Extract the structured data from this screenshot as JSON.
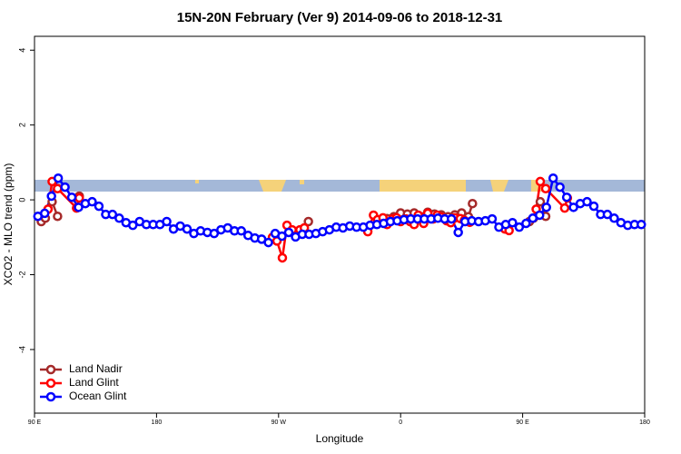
{
  "chart_data": {
    "type": "line",
    "title": "15N-20N February (Ver 9)   2014-09-06 to 2018-12-31",
    "x_label": "Longitude",
    "y_label": "XCO2 - MLO trend (ppm)",
    "xlim": [
      90,
      540
    ],
    "xticks": [
      {
        "value": 90,
        "label": "90 E"
      },
      {
        "value": 180,
        "label": "180"
      },
      {
        "value": 270,
        "label": "90 W"
      },
      {
        "value": 360,
        "label": "0"
      },
      {
        "value": 450,
        "label": "90 E"
      },
      {
        "value": 540,
        "label": "180"
      }
    ],
    "ylim": [
      -5.7,
      4.37
    ],
    "yticks": [
      -4,
      -2,
      0,
      2,
      4
    ],
    "grid": false,
    "legend": "bottom-left",
    "series": [
      {
        "name": "Land Nadir",
        "color": "#a52a2a",
        "x": [
          95,
          98,
          103,
          107,
          null,
          123,
          null,
          292,
          null,
          350,
          355,
          360,
          365,
          370,
          375,
          380,
          385,
          390,
          395,
          400,
          405,
          410,
          413,
          null,
          455,
          458,
          463,
          467
        ],
        "values": [
          -0.58,
          -0.49,
          -0.05,
          -0.44,
          null,
          0.1,
          null,
          -0.58,
          null,
          -0.5,
          -0.45,
          -0.35,
          -0.38,
          -0.35,
          -0.45,
          -0.33,
          -0.38,
          -0.4,
          -0.45,
          -0.4,
          -0.35,
          -0.45,
          -0.1,
          null,
          -0.58,
          -0.49,
          -0.05,
          -0.44
        ]
      },
      {
        "name": "Land Glint",
        "color": "#ff0000",
        "x": [
          100,
          103,
          107,
          121,
          123,
          null,
          265.5,
          268.8,
          272.8,
          276.2,
          280,
          285.7,
          289,
          null,
          335.8,
          340,
          343,
          347,
          350,
          354,
          357,
          360,
          364,
          367,
          370,
          373,
          377,
          380,
          384,
          387,
          390,
          394,
          397,
          400,
          404,
          407,
          411,
          null,
          437,
          440,
          null,
          460,
          463,
          467,
          481,
          483
        ],
        "values": [
          -0.25,
          0.49,
          0.3,
          -0.22,
          0.05,
          null,
          -1.0,
          -1.1,
          -1.55,
          -0.68,
          -0.8,
          -0.8,
          -0.75,
          null,
          -0.85,
          -0.41,
          -0.53,
          -0.48,
          -0.66,
          -0.51,
          -0.48,
          -0.58,
          -0.51,
          -0.58,
          -0.66,
          -0.41,
          -0.63,
          -0.36,
          -0.51,
          -0.41,
          -0.46,
          -0.56,
          -0.61,
          -0.48,
          -0.5,
          -0.55,
          -0.6,
          null,
          -0.78,
          -0.82,
          null,
          -0.25,
          0.49,
          0.3,
          -0.22,
          0.05
        ]
      },
      {
        "name": "Ocean Glint",
        "color": "#0000ff",
        "x": [
          92.5,
          97.5,
          102.5,
          107.5,
          112.5,
          117.5,
          122.5,
          127.5,
          132.5,
          137.5,
          142.5,
          147.5,
          152.5,
          157.5,
          162.5,
          167.5,
          172.5,
          177.5,
          182.5,
          187.5,
          192.5,
          197.5,
          202.5,
          207.5,
          212.5,
          217.5,
          222.5,
          227.5,
          232.5,
          237.5,
          242.5,
          247.5,
          252.5,
          257.5,
          262.5,
          267.5,
          272.5,
          277.5,
          282.5,
          287.5,
          292.5,
          297.5,
          302.5,
          307.5,
          312.5,
          317.5,
          322.5,
          327.5,
          332.5,
          337.5,
          342.5,
          347.5,
          352.5,
          357.5,
          362.5,
          367.5,
          372.5,
          377.5,
          382.5,
          387.5,
          392.5,
          397.5,
          402.5,
          407.5,
          412.5,
          417.5,
          422.5,
          427.5,
          432.5,
          437.5,
          442.5,
          447.5,
          452.5,
          457.5,
          462.5,
          467.5,
          472.5,
          477.5,
          482.5,
          487.5,
          492.5,
          497.5,
          502.5,
          507.5,
          512.5,
          517.5,
          522.5,
          527.5,
          532.5,
          537.5
        ],
        "values": [
          -0.44,
          -0.36,
          0.1,
          0.58,
          0.34,
          0.07,
          -0.2,
          -0.1,
          -0.05,
          -0.17,
          -0.39,
          -0.39,
          -0.49,
          -0.61,
          -0.68,
          -0.58,
          -0.66,
          -0.66,
          -0.66,
          -0.58,
          -0.78,
          -0.7,
          -0.78,
          -0.9,
          -0.83,
          -0.87,
          -0.9,
          -0.8,
          -0.75,
          -0.83,
          -0.83,
          -0.95,
          -1.02,
          -1.05,
          -1.14,
          -0.9,
          -0.97,
          -0.87,
          -0.99,
          -0.92,
          -0.92,
          -0.9,
          -0.85,
          -0.8,
          -0.73,
          -0.75,
          -0.7,
          -0.73,
          -0.73,
          -0.68,
          -0.66,
          -0.63,
          -0.58,
          -0.56,
          -0.53,
          -0.51,
          -0.51,
          -0.51,
          -0.51,
          -0.49,
          -0.51,
          -0.51,
          -0.87,
          -0.58,
          -0.56,
          -0.58,
          -0.56,
          -0.51,
          -0.73,
          -0.66,
          -0.61,
          -0.73,
          -0.63,
          -0.49,
          -0.41,
          -0.2,
          0.58,
          0.34,
          0.07,
          -0.2,
          -0.1,
          -0.05,
          -0.17,
          -0.39,
          -0.39,
          -0.49,
          -0.61,
          -0.68,
          -0.66,
          -0.66
        ]
      }
    ]
  }
}
